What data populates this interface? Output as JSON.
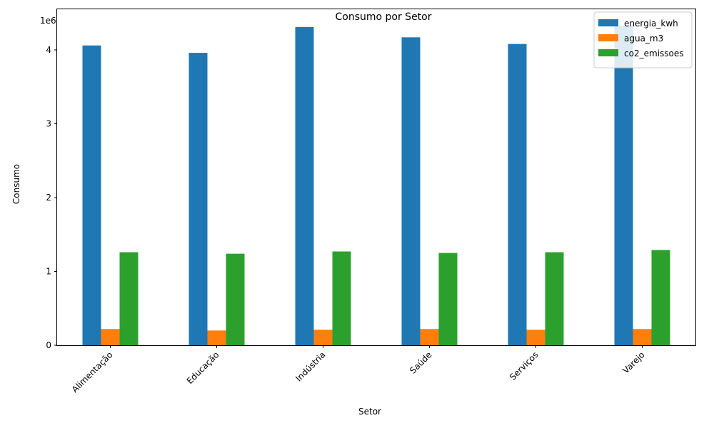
{
  "chart_data": {
    "type": "bar",
    "title": "Consumo por Setor",
    "xlabel": "Setor",
    "ylabel": "Consumo",
    "y_offset_label": "1e6",
    "y_scale": 1000000,
    "ylim": [
      0,
      4550000
    ],
    "yticks": [
      0,
      1000000,
      2000000,
      3000000,
      4000000
    ],
    "ytick_labels": [
      "0",
      "1",
      "2",
      "3",
      "4"
    ],
    "categories": [
      "Alimentação",
      "Educação",
      "Indústria",
      "Saúde",
      "Serviços",
      "Varejo"
    ],
    "legend_position": "top-right",
    "grid": false,
    "series": [
      {
        "name": "energia_kwh",
        "color": "#1f77b4",
        "values": [
          4060000,
          3960000,
          4310000,
          4170000,
          4080000,
          4330000
        ]
      },
      {
        "name": "agua_m3",
        "color": "#ff7f0e",
        "values": [
          220000,
          200000,
          210000,
          220000,
          210000,
          220000
        ]
      },
      {
        "name": "co2_emissoes",
        "color": "#2ca02c",
        "values": [
          1260000,
          1240000,
          1270000,
          1250000,
          1260000,
          1290000
        ]
      }
    ]
  }
}
